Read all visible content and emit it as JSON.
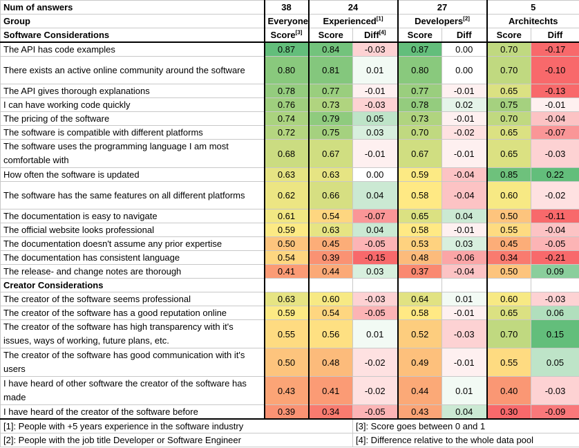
{
  "header": {
    "row1_label": "Num of answers",
    "row2_label": "Group",
    "counts": [
      "38",
      "24",
      "27",
      "5"
    ],
    "groups": [
      {
        "name": "Everyone",
        "sup": ""
      },
      {
        "name": "Experienced",
        "sup": "[1]"
      },
      {
        "name": "Developers",
        "sup": "[2]"
      },
      {
        "name": "Architechts",
        "sup": ""
      }
    ],
    "sublabels": [
      {
        "text": "Score",
        "sup": "[3]"
      },
      {
        "text": "Score",
        "sup": ""
      },
      {
        "text": "Diff",
        "sup": "[4]"
      },
      {
        "text": "Score",
        "sup": ""
      },
      {
        "text": "Diff",
        "sup": ""
      },
      {
        "text": "Score",
        "sup": ""
      },
      {
        "text": "Diff",
        "sup": ""
      }
    ]
  },
  "sections": [
    {
      "title": "Software Considerations",
      "rows": [
        {
          "label": "The API has code examples",
          "vals": [
            "0.87",
            "0.84",
            "-0.03",
            "0.87",
            "0.00",
            "0.70",
            "-0.17"
          ]
        },
        {
          "label": "There exists an active online community around the software",
          "vals": [
            "0.80",
            "0.81",
            "0.01",
            "0.80",
            "0.00",
            "0.70",
            "-0.10"
          ]
        },
        {
          "label": "The API gives thorough explanations",
          "vals": [
            "0.78",
            "0.77",
            "-0.01",
            "0.77",
            "-0.01",
            "0.65",
            "-0.13"
          ]
        },
        {
          "label": "I can have working code quickly",
          "vals": [
            "0.76",
            "0.73",
            "-0.03",
            "0.78",
            "0.02",
            "0.75",
            "-0.01"
          ]
        },
        {
          "label": "The pricing of the software",
          "vals": [
            "0.74",
            "0.79",
            "0.05",
            "0.73",
            "-0.01",
            "0.70",
            "-0.04"
          ]
        },
        {
          "label": "The software is compatible with different platforms",
          "vals": [
            "0.72",
            "0.75",
            "0.03",
            "0.70",
            "-0.02",
            "0.65",
            "-0.07"
          ]
        },
        {
          "label": "The software uses the programming language I am most comfortable with",
          "vals": [
            "0.68",
            "0.67",
            "-0.01",
            "0.67",
            "-0.01",
            "0.65",
            "-0.03"
          ]
        },
        {
          "label": "How often the software is updated",
          "vals": [
            "0.63",
            "0.63",
            "0.00",
            "0.59",
            "-0.04",
            "0.85",
            "0.22"
          ]
        },
        {
          "label": "The software has the same features on all different platforms",
          "vals": [
            "0.62",
            "0.66",
            "0.04",
            "0.58",
            "-0.04",
            "0.60",
            "-0.02"
          ]
        },
        {
          "label": "The documentation is easy to navigate",
          "vals": [
            "0.61",
            "0.54",
            "-0.07",
            "0.65",
            "0.04",
            "0.50",
            "-0.11"
          ]
        },
        {
          "label": "The official website looks professional",
          "vals": [
            "0.59",
            "0.63",
            "0.04",
            "0.58",
            "-0.01",
            "0.55",
            "-0.04"
          ]
        },
        {
          "label": "The documentation doesn't assume any prior expertise",
          "vals": [
            "0.50",
            "0.45",
            "-0.05",
            "0.53",
            "0.03",
            "0.45",
            "-0.05"
          ]
        },
        {
          "label": "The documentation has consistent language",
          "vals": [
            "0.54",
            "0.39",
            "-0.15",
            "0.48",
            "-0.06",
            "0.34",
            "-0.21"
          ]
        },
        {
          "label": "The release- and change notes are thorough",
          "vals": [
            "0.41",
            "0.44",
            "0.03",
            "0.37",
            "-0.04",
            "0.50",
            "0.09"
          ]
        }
      ]
    },
    {
      "title": "Creator Considerations",
      "rows": [
        {
          "label": "The creator of the software seems professional",
          "vals": [
            "0.63",
            "0.60",
            "-0.03",
            "0.64",
            "0.01",
            "0.60",
            "-0.03"
          ]
        },
        {
          "label": "The creator of the software has a good reputation online",
          "vals": [
            "0.59",
            "0.54",
            "-0.05",
            "0.58",
            "-0.01",
            "0.65",
            "0.06"
          ]
        },
        {
          "label": "The creator of the software has high transparency with it's issues, ways of working, future plans, etc.",
          "vals": [
            "0.55",
            "0.56",
            "0.01",
            "0.52",
            "-0.03",
            "0.70",
            "0.15"
          ]
        },
        {
          "label": "The creator of the software has good communication with it's users",
          "vals": [
            "0.50",
            "0.48",
            "-0.02",
            "0.49",
            "-0.01",
            "0.55",
            "0.05"
          ]
        },
        {
          "label": "I have heard of other software the creator of the software has made",
          "vals": [
            "0.43",
            "0.41",
            "-0.02",
            "0.44",
            "0.01",
            "0.40",
            "-0.03"
          ]
        },
        {
          "label": "I have heard of the creator of the software before",
          "vals": [
            "0.39",
            "0.34",
            "-0.05",
            "0.43",
            "0.04",
            "0.30",
            "-0.09"
          ]
        }
      ]
    }
  ],
  "footnotes": [
    [
      "[1]: People with +5 years experience in the software industry",
      "[3]: Score goes between 0 and 1"
    ],
    [
      "[2]: People with the job title Developer or Software Engineer",
      "[4]: Difference relative to the whole data pool"
    ]
  ],
  "colors": {
    "score_low": "#f8696b",
    "score_mid": "#ffeb84",
    "score_high": "#63be7b",
    "diff_neg": "#f8696b",
    "diff_zero": "#ffffff",
    "diff_pos": "#63be7b"
  }
}
